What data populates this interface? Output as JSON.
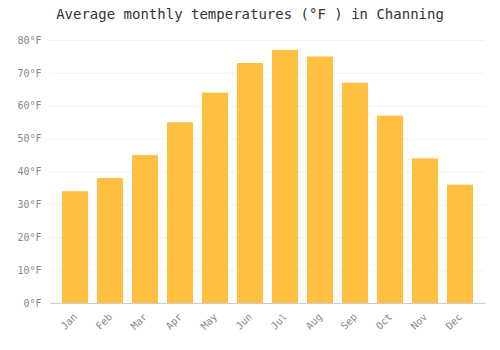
{
  "chart_data": {
    "type": "bar",
    "title": "Average monthly temperatures (°F ) in Channing",
    "categories": [
      "Jan",
      "Feb",
      "Mar",
      "Apr",
      "May",
      "Jun",
      "Jul",
      "Aug",
      "Sep",
      "Oct",
      "Nov",
      "Dec"
    ],
    "values": [
      34,
      38,
      45,
      55,
      64,
      73,
      77,
      75,
      67,
      57,
      44,
      36
    ],
    "color": "#ffbf40",
    "ylim": [
      0,
      80
    ],
    "yticks": [
      {
        "value": 0,
        "label": "0°F"
      },
      {
        "value": 10,
        "label": "10°F"
      },
      {
        "value": 20,
        "label": "20°F"
      },
      {
        "value": 30,
        "label": "30°F"
      },
      {
        "value": 40,
        "label": "40°F"
      },
      {
        "value": 50,
        "label": "50°F"
      },
      {
        "value": 60,
        "label": "60°F"
      },
      {
        "value": 70,
        "label": "70°F"
      },
      {
        "value": 80,
        "label": "80°F"
      }
    ],
    "grid": true
  }
}
